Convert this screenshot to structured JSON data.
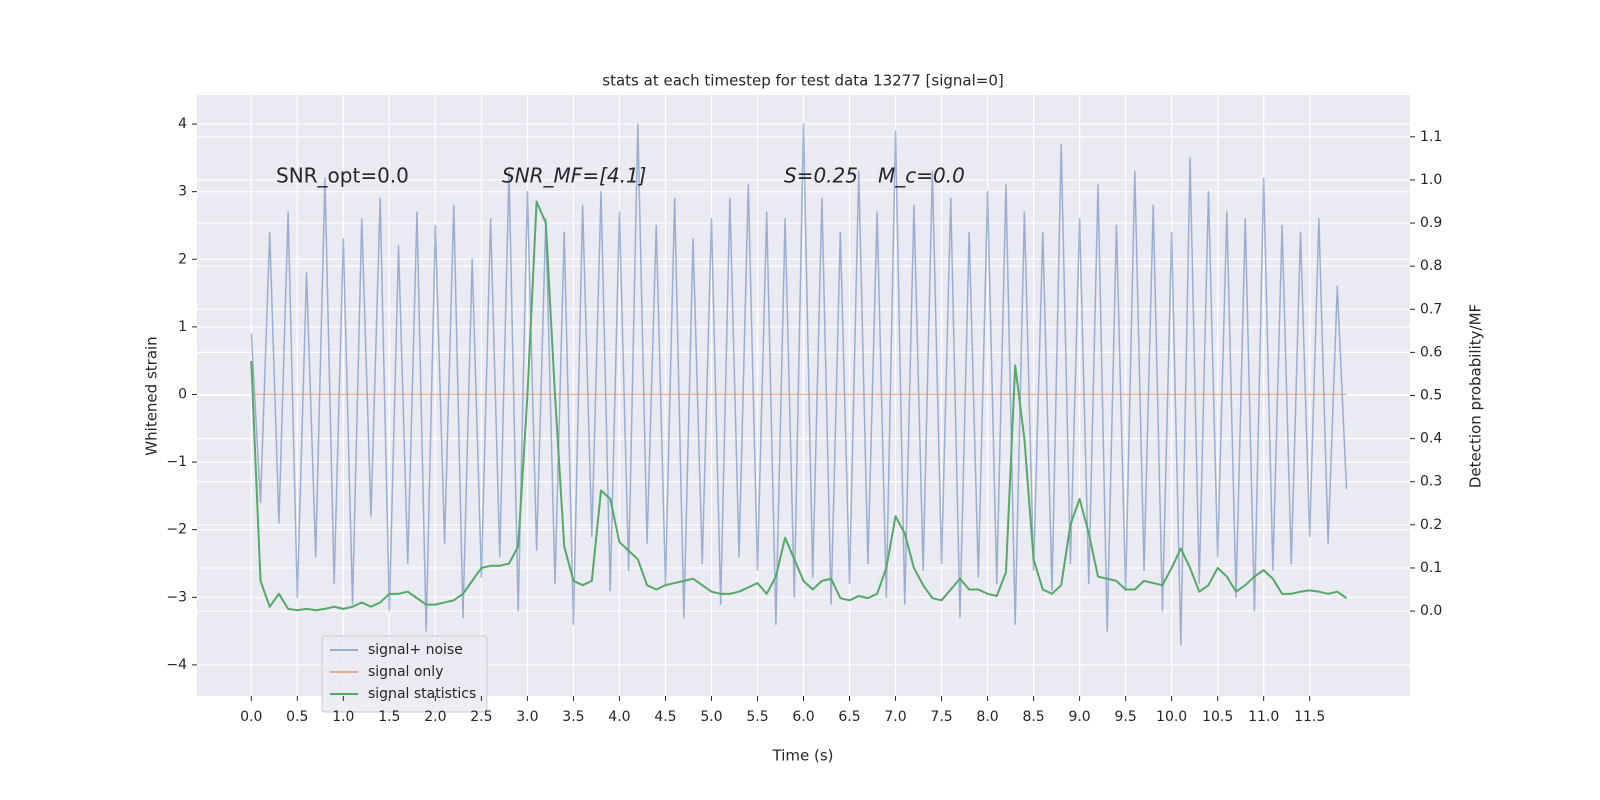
{
  "chart_data": {
    "type": "line",
    "title": "stats at each timestep for test data 13277 [signal=0]",
    "xlabel": "Time (s)",
    "ylabel": "Whitened strain",
    "y2label": "Detection probability/MF",
    "annotations": [
      "SNR_opt=0.0",
      "SNR_MF=[4.1]",
      "S=0.25",
      "M_c=0.0"
    ],
    "x": [
      0.0,
      0.1,
      0.2,
      0.3,
      0.4,
      0.5,
      0.6,
      0.7,
      0.8,
      0.9,
      1.0,
      1.1,
      1.2,
      1.3,
      1.4,
      1.5,
      1.6,
      1.7,
      1.8,
      1.9,
      2.0,
      2.1,
      2.2,
      2.3,
      2.4,
      2.5,
      2.6,
      2.7,
      2.8,
      2.9,
      3.0,
      3.1,
      3.2,
      3.3,
      3.4,
      3.5,
      3.6,
      3.7,
      3.8,
      3.9,
      4.0,
      4.1,
      4.2,
      4.3,
      4.4,
      4.5,
      4.6,
      4.7,
      4.8,
      4.9,
      5.0,
      5.1,
      5.2,
      5.3,
      5.4,
      5.5,
      5.6,
      5.7,
      5.8,
      5.9,
      6.0,
      6.1,
      6.2,
      6.3,
      6.4,
      6.5,
      6.6,
      6.7,
      6.8,
      6.9,
      7.0,
      7.1,
      7.2,
      7.3,
      7.4,
      7.5,
      7.6,
      7.7,
      7.8,
      7.9,
      8.0,
      8.1,
      8.2,
      8.3,
      8.4,
      8.5,
      8.6,
      8.7,
      8.8,
      8.9,
      9.0,
      9.1,
      9.2,
      9.3,
      9.4,
      9.5,
      9.6,
      9.7,
      9.8,
      9.9,
      10.0,
      10.1,
      10.2,
      10.3,
      10.4,
      10.5,
      10.6,
      10.7,
      10.8,
      10.9,
      11.0,
      11.1,
      11.2,
      11.3,
      11.4,
      11.5,
      11.6,
      11.7,
      11.8,
      11.9
    ],
    "series": [
      {
        "name": "signal+ noise",
        "color": "#4c72b0",
        "opacity": 0.5,
        "values": [
          0.9,
          -1.6,
          2.4,
          -1.9,
          2.7,
          -3.0,
          1.8,
          -2.4,
          3.2,
          -2.8,
          2.3,
          -3.1,
          2.6,
          -1.8,
          2.9,
          -3.2,
          2.2,
          -2.5,
          2.7,
          -3.5,
          2.5,
          -2.2,
          2.8,
          -3.3,
          2.0,
          -2.7,
          2.6,
          -2.4,
          3.3,
          -3.2,
          3.0,
          -2.3,
          2.6,
          -2.8,
          2.4,
          -3.4,
          2.8,
          -2.1,
          3.0,
          -2.9,
          2.7,
          -2.6,
          4.0,
          -2.2,
          2.5,
          -2.8,
          2.9,
          -3.3,
          2.3,
          -2.5,
          2.6,
          -3.1,
          2.9,
          -2.4,
          3.1,
          -2.6,
          2.7,
          -3.4,
          2.6,
          -3.0,
          4.0,
          -2.7,
          2.9,
          -3.1,
          2.4,
          -2.8,
          3.3,
          -2.5,
          2.7,
          -3.0,
          3.9,
          -3.1,
          2.8,
          -2.6,
          3.3,
          -2.5,
          2.9,
          -3.3,
          2.4,
          -2.7,
          3.0,
          -2.8,
          3.1,
          -3.4,
          2.7,
          -2.6,
          2.4,
          -2.9,
          3.7,
          -2.5,
          2.6,
          -2.8,
          3.1,
          -3.5,
          2.5,
          -2.9,
          3.3,
          -2.6,
          2.8,
          -3.2,
          2.4,
          -3.7,
          3.5,
          -2.8,
          3.0,
          -2.4,
          2.7,
          -3.0,
          2.6,
          -3.2,
          3.2,
          -2.6,
          2.5,
          -2.5,
          2.4,
          -2.1,
          2.6,
          -2.2,
          1.6,
          -1.4
        ]
      },
      {
        "name": "signal only",
        "color": "#dd8452",
        "opacity": 0.6,
        "values": [
          0,
          0,
          0,
          0,
          0,
          0,
          0,
          0,
          0,
          0,
          0,
          0,
          0,
          0,
          0,
          0,
          0,
          0,
          0,
          0,
          0,
          0,
          0,
          0,
          0,
          0,
          0,
          0,
          0,
          0,
          0,
          0,
          0,
          0,
          0,
          0,
          0,
          0,
          0,
          0,
          0,
          0,
          0,
          0,
          0,
          0,
          0,
          0,
          0,
          0,
          0,
          0,
          0,
          0,
          0,
          0,
          0,
          0,
          0,
          0,
          0,
          0,
          0,
          0,
          0,
          0,
          0,
          0,
          0,
          0,
          0,
          0,
          0,
          0,
          0,
          0,
          0,
          0,
          0,
          0,
          0,
          0,
          0,
          0,
          0,
          0,
          0,
          0,
          0,
          0,
          0,
          0,
          0,
          0,
          0,
          0,
          0,
          0,
          0,
          0,
          0,
          0,
          0,
          0,
          0,
          0,
          0,
          0,
          0,
          0,
          0,
          0,
          0,
          0,
          0,
          0,
          0,
          0,
          0,
          0
        ]
      },
      {
        "name": "signal statistics",
        "color": "#55a868",
        "opacity": 1,
        "axis": "y2",
        "values": [
          0.58,
          0.07,
          0.01,
          0.04,
          0.005,
          0.002,
          0.005,
          0.002,
          0.005,
          0.01,
          0.005,
          0.01,
          0.02,
          0.01,
          0.02,
          0.04,
          0.04,
          0.045,
          0.03,
          0.015,
          0.015,
          0.02,
          0.025,
          0.04,
          0.07,
          0.1,
          0.105,
          0.105,
          0.11,
          0.15,
          0.5,
          0.95,
          0.9,
          0.5,
          0.15,
          0.07,
          0.06,
          0.07,
          0.28,
          0.26,
          0.16,
          0.14,
          0.12,
          0.06,
          0.05,
          0.06,
          0.065,
          0.07,
          0.075,
          0.06,
          0.045,
          0.04,
          0.04,
          0.045,
          0.055,
          0.065,
          0.04,
          0.08,
          0.17,
          0.12,
          0.07,
          0.05,
          0.07,
          0.075,
          0.03,
          0.025,
          0.035,
          0.03,
          0.04,
          0.1,
          0.22,
          0.18,
          0.1,
          0.06,
          0.03,
          0.025,
          0.05,
          0.075,
          0.05,
          0.05,
          0.04,
          0.035,
          0.09,
          0.57,
          0.4,
          0.12,
          0.05,
          0.04,
          0.06,
          0.2,
          0.26,
          0.18,
          0.08,
          0.075,
          0.07,
          0.05,
          0.05,
          0.07,
          0.065,
          0.06,
          0.1,
          0.145,
          0.1,
          0.045,
          0.06,
          0.1,
          0.08,
          0.045,
          0.06,
          0.08,
          0.095,
          0.075,
          0.04,
          0.04,
          0.045,
          0.048,
          0.045,
          0.04,
          0.045,
          0.03
        ]
      }
    ],
    "xlim": [
      -0.59,
      12.59
    ],
    "xticks": [
      {
        "value": 0,
        "label": "0.0"
      },
      0.5,
      {
        "value": 1,
        "label": "1.0"
      },
      1.5,
      {
        "value": 2,
        "label": "2.0"
      },
      2.5,
      {
        "value": 3,
        "label": "3.0"
      },
      3.5,
      {
        "value": 4,
        "label": "4.0"
      },
      4.5,
      {
        "value": 5,
        "label": "5.0"
      },
      5.5,
      {
        "value": 6,
        "label": "6.0"
      },
      6.5,
      {
        "value": 7,
        "label": "7.0"
      },
      7.5,
      {
        "value": 8,
        "label": "8.0"
      },
      8.5,
      {
        "value": 9,
        "label": "9.0"
      },
      9.5,
      {
        "value": 10,
        "label": "10.0"
      },
      10.5,
      {
        "value": 11,
        "label": "11.0"
      },
      11.5
    ],
    "ylim": [
      -4.46,
      4.43
    ],
    "yticks": [
      {
        "value": -4,
        "label": "−4"
      },
      {
        "value": -3,
        "label": "−3"
      },
      {
        "value": -2,
        "label": "−2"
      },
      {
        "value": -1,
        "label": "−1"
      },
      0,
      1,
      2,
      3,
      4
    ],
    "y2lim": [
      -0.197,
      1.197
    ],
    "y2ticks": [
      {
        "value": 0,
        "label": "0.0"
      },
      0.1,
      0.2,
      0.3,
      0.4,
      0.5,
      0.6,
      0.7,
      0.8,
      0.9,
      {
        "value": 1,
        "label": "1.0"
      },
      1.1
    ],
    "grid": true,
    "legend": "lower left"
  }
}
